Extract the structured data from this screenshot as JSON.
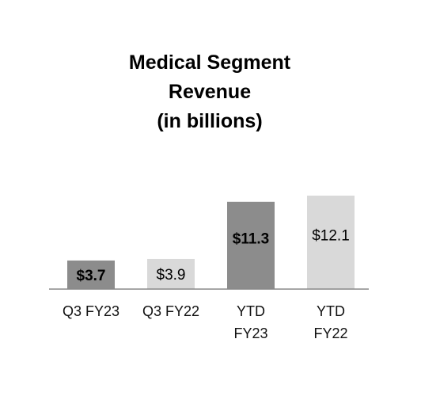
{
  "chart_data": {
    "type": "bar",
    "title_lines": [
      "Medical Segment",
      "Revenue",
      "(in billions)"
    ],
    "categories": [
      [
        "Q3 FY23"
      ],
      [
        "Q3 FY22"
      ],
      [
        "YTD",
        "FY23"
      ],
      [
        "YTD",
        "FY22"
      ]
    ],
    "values": [
      3.7,
      3.9,
      11.3,
      12.1
    ],
    "data_labels": [
      "$3.7",
      "$3.9",
      "$11.3",
      "$12.1"
    ],
    "bar_colors": [
      "#8c8c8c",
      "#d9d9d9",
      "#8c8c8c",
      "#d9d9d9"
    ],
    "label_bold": [
      true,
      false,
      true,
      false
    ],
    "label_color": "#000000",
    "axis_color": "#888888",
    "ylim": [
      0,
      12.1
    ],
    "grid": false,
    "legend": "none"
  }
}
